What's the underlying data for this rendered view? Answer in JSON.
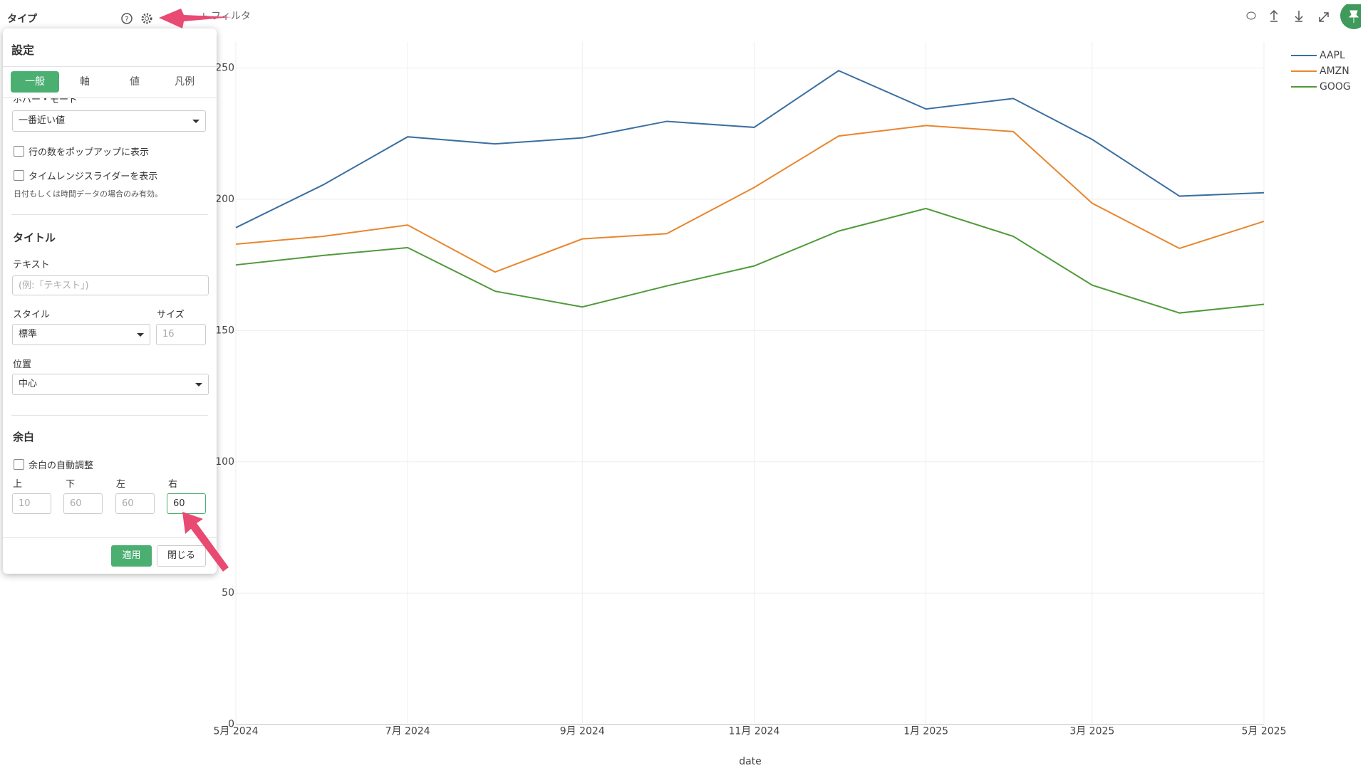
{
  "ui": {
    "top_label": "タイプ",
    "filter": "+ フィルタ",
    "panel": {
      "title": "設定",
      "tabs": [
        "一般",
        "軸",
        "値",
        "凡例"
      ],
      "hover_label": "ホバー・モード",
      "hover_value": "一番近い値",
      "check_rows": "行の数をポップアップに表示",
      "check_slider": "タイムレンジスライダーを表示",
      "slider_note": "日付もしくは時間データの場合のみ有効。",
      "title_section": "タイトル",
      "text_label": "テキスト",
      "text_placeholder": "(例:「テキスト」)",
      "style_label": "スタイル",
      "size_label": "サイズ",
      "style_value": "標準",
      "size_placeholder": 16,
      "position_label": "位置",
      "position_value": "中心",
      "margin_section": "余白",
      "auto_margin": "余白の自動調整",
      "margin_labels": [
        "上",
        "下",
        "左",
        "右"
      ],
      "margin_values": [
        10,
        60,
        60,
        60
      ],
      "apply": "適用",
      "close": "閉じる"
    }
  },
  "chart_data": {
    "type": "line",
    "x_label": "date",
    "x": [
      "2024-05",
      "2024-06",
      "2024-07",
      "2024-08",
      "2024-09",
      "2024-10",
      "2024-11",
      "2024-12",
      "2025-01",
      "2025-02",
      "2025-03",
      "2025-04",
      "2025-05"
    ],
    "xticks": [
      {
        "value": "2024-05",
        "label": "5月 2024"
      },
      {
        "value": "2024-07",
        "label": "7月 2024"
      },
      {
        "value": "2024-09",
        "label": "9月 2024"
      },
      {
        "value": "2024-11",
        "label": "11月 2024"
      },
      {
        "value": "2025-01",
        "label": "1月 2025"
      },
      {
        "value": "2025-03",
        "label": "3月 2025"
      },
      {
        "value": "2025-05",
        "label": "5月 2025"
      }
    ],
    "ylim": [
      0,
      260
    ],
    "yticks": [
      0,
      50,
      100,
      150,
      200,
      250
    ],
    "grid": true,
    "legend": "top-right",
    "series": [
      {
        "name": "AAPL",
        "color": "#3b6fa0",
        "values": [
          189.2,
          205.5,
          223.8,
          221.1,
          223.4,
          229.7,
          227.4,
          249.0,
          234.4,
          238.4,
          222.8,
          201.2,
          202.5
        ]
      },
      {
        "name": "AMZN",
        "color": "#e8862d",
        "values": [
          182.9,
          185.9,
          190.2,
          172.3,
          184.9,
          186.9,
          204.5,
          224.1,
          228.1,
          225.8,
          198.5,
          181.3,
          191.6
        ]
      },
      {
        "name": "GOOG",
        "color": "#4f9a3a",
        "values": [
          175.0,
          178.6,
          181.6,
          165.0,
          159.0,
          167.0,
          174.6,
          187.9,
          196.5,
          185.9,
          167.3,
          156.7,
          160.0
        ]
      }
    ]
  }
}
